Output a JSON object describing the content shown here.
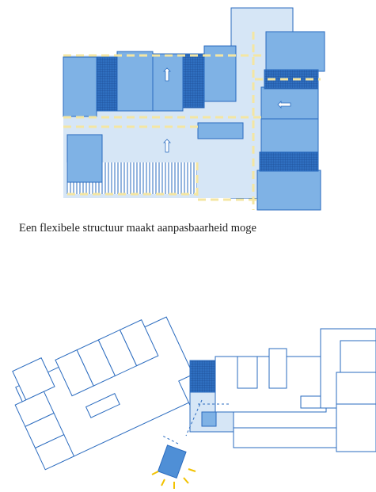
{
  "caption": "Een flexibele structuur maakt aanpasbaarheid moge"
}
